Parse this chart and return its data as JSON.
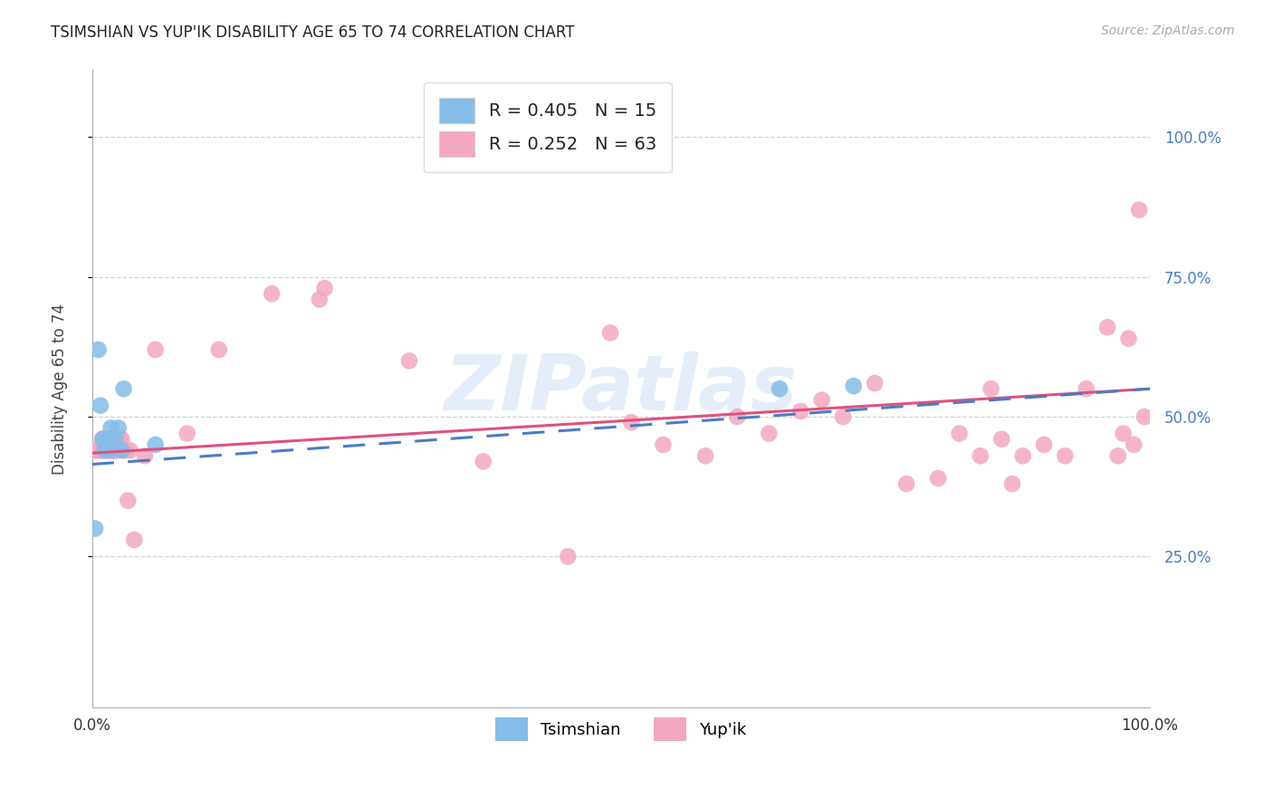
{
  "title": "TSIMSHIAN VS YUP'IK DISABILITY AGE 65 TO 74 CORRELATION CHART",
  "source": "Source: ZipAtlas.com",
  "ylabel": "Disability Age 65 to 74",
  "y_tick_labels": [
    "25.0%",
    "50.0%",
    "75.0%",
    "100.0%"
  ],
  "y_tick_values": [
    0.25,
    0.5,
    0.75,
    1.0
  ],
  "xlim": [
    0.0,
    1.0
  ],
  "ylim": [
    -0.02,
    1.12
  ],
  "tsimshian_R": 0.405,
  "tsimshian_N": 15,
  "yupik_R": 0.252,
  "yupik_N": 63,
  "tsimshian_color": "#85bce8",
  "yupik_color": "#f4a8c0",
  "tsimshian_line_color": "#4a7cc7",
  "tsimshian_line_dash": [
    8,
    5
  ],
  "yupik_line_color": "#e05080",
  "legend_label_tsimshian": "Tsimshian",
  "legend_label_yupik": "Yup'ik",
  "watermark": "ZIPatlas",
  "right_tick_color": "#4a7cc7",
  "tsimshian_x": [
    0.003,
    0.006,
    0.008,
    0.01,
    0.012,
    0.015,
    0.018,
    0.02,
    0.022,
    0.025,
    0.028,
    0.03,
    0.06,
    0.65,
    0.72
  ],
  "tsimshian_y": [
    0.3,
    0.62,
    0.52,
    0.46,
    0.44,
    0.46,
    0.48,
    0.44,
    0.46,
    0.48,
    0.44,
    0.55,
    0.45,
    0.55,
    0.555
  ],
  "yupik_x": [
    0.003,
    0.005,
    0.007,
    0.008,
    0.01,
    0.01,
    0.012,
    0.013,
    0.015,
    0.015,
    0.016,
    0.018,
    0.018,
    0.02,
    0.02,
    0.022,
    0.023,
    0.025,
    0.026,
    0.028,
    0.03,
    0.032,
    0.034,
    0.036,
    0.04,
    0.05,
    0.06,
    0.09,
    0.12,
    0.17,
    0.215,
    0.22,
    0.3,
    0.37,
    0.45,
    0.49,
    0.51,
    0.54,
    0.58,
    0.61,
    0.64,
    0.67,
    0.69,
    0.71,
    0.74,
    0.77,
    0.8,
    0.82,
    0.84,
    0.85,
    0.86,
    0.87,
    0.88,
    0.9,
    0.92,
    0.94,
    0.96,
    0.97,
    0.975,
    0.98,
    0.985,
    0.99,
    0.995
  ],
  "yupik_y": [
    0.44,
    0.44,
    0.44,
    0.44,
    0.44,
    0.46,
    0.44,
    0.44,
    0.44,
    0.46,
    0.44,
    0.46,
    0.44,
    0.44,
    0.46,
    0.44,
    0.44,
    0.44,
    0.46,
    0.46,
    0.44,
    0.44,
    0.35,
    0.44,
    0.28,
    0.43,
    0.62,
    0.47,
    0.62,
    0.72,
    0.71,
    0.73,
    0.6,
    0.42,
    0.25,
    0.65,
    0.49,
    0.45,
    0.43,
    0.5,
    0.47,
    0.51,
    0.53,
    0.5,
    0.56,
    0.38,
    0.39,
    0.47,
    0.43,
    0.55,
    0.46,
    0.38,
    0.43,
    0.45,
    0.43,
    0.55,
    0.66,
    0.43,
    0.47,
    0.64,
    0.45,
    0.87,
    0.5
  ]
}
